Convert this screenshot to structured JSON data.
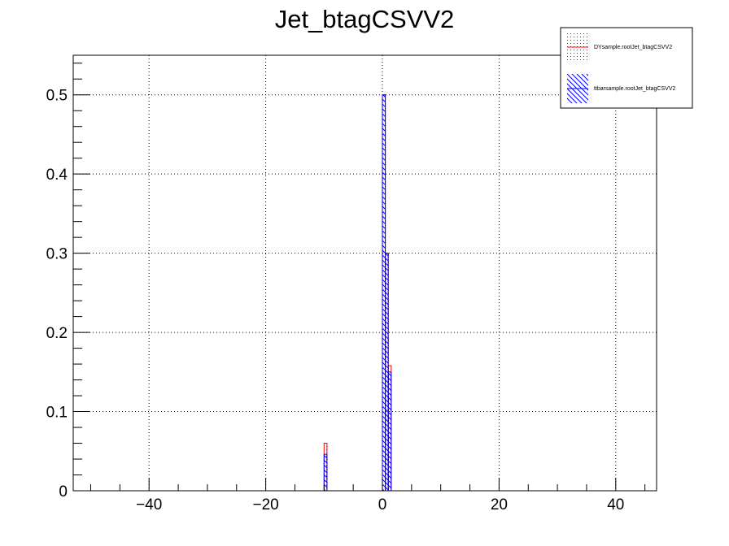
{
  "chart_data": {
    "type": "bar",
    "title": "Jet_btagCSVV2",
    "xlabel": "",
    "ylabel": "",
    "xlim": [
      -53,
      47
    ],
    "ylim": [
      0,
      0.55
    ],
    "x_ticks": [
      -40,
      -20,
      0,
      20,
      40
    ],
    "x_tick_labels": [
      "−40",
      "−20",
      "0",
      "20",
      "40"
    ],
    "y_ticks": [
      0,
      0.1,
      0.2,
      0.3,
      0.4,
      0.5
    ],
    "y_tick_labels": [
      "0",
      "0.1",
      "0.2",
      "0.3",
      "0.4",
      "0.5"
    ],
    "grid": true,
    "legend_position": "top-right",
    "bin_width": 0.5,
    "series": [
      {
        "name": "DYsample.rootJet_btagCSVV2",
        "color": "#ff0000",
        "fill": "dots",
        "bins": [
          {
            "x": -10,
            "value": 0.06
          },
          {
            "x": 0,
            "value": 0.5
          },
          {
            "x": 0.5,
            "value": 0.3
          },
          {
            "x": 1,
            "value": 0.158
          }
        ]
      },
      {
        "name": "ttbarsample.rootJet_btagCSVV2",
        "color": "#0000ff",
        "fill": "hatch",
        "bins": [
          {
            "x": -10,
            "value": 0.046
          },
          {
            "x": 0,
            "value": 0.5
          },
          {
            "x": 0.5,
            "value": 0.3
          },
          {
            "x": 1,
            "value": 0.15
          }
        ]
      }
    ]
  }
}
